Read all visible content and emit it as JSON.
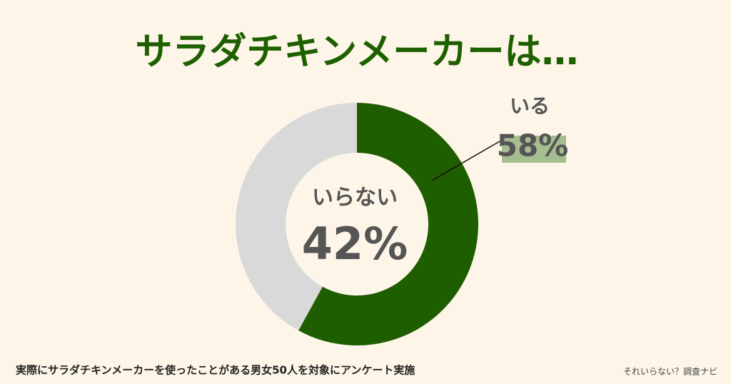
{
  "chart_data": {
    "type": "donut",
    "title": "サラダチキンメーカーは…",
    "categories": [
      "いる",
      "いらない"
    ],
    "values": [
      58,
      42
    ],
    "value_labels": [
      "58%",
      "42%"
    ],
    "colors": [
      "#1e5e00",
      "#d9d9d9"
    ],
    "footnote": "実際にサラダチキンメーカーを使ったことがある男女50人を対象にアンケート実施",
    "credit": "それいらない？調査ナビ"
  }
}
